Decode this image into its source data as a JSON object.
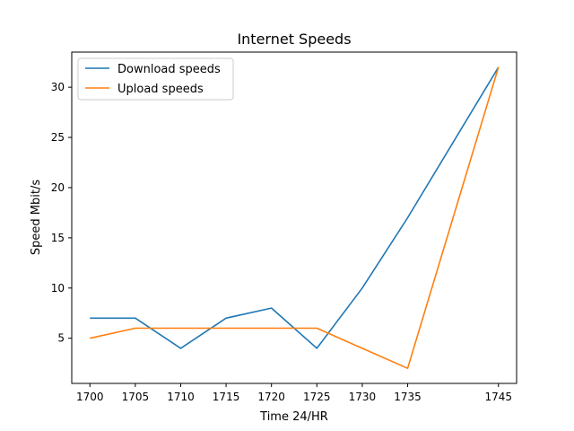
{
  "chart_data": {
    "type": "line",
    "title": "Internet Speeds",
    "xlabel": "Time 24/HR",
    "ylabel": "Speed Mbit/s",
    "x": [
      1700,
      1705,
      1710,
      1715,
      1720,
      1725,
      1730,
      1735,
      1745
    ],
    "xticks": [
      "1700",
      "1705",
      "1710",
      "1715",
      "1720",
      "1725",
      "1730",
      "1735",
      "1745"
    ],
    "yticks": [
      5,
      10,
      15,
      20,
      25,
      30
    ],
    "ylim": [
      0.5,
      33.5
    ],
    "grid": false,
    "legend_position": "top-left",
    "series": [
      {
        "name": "Download speeds",
        "color": "#1f77b4",
        "values": [
          7,
          7,
          4,
          7,
          8,
          4,
          10,
          17,
          32
        ]
      },
      {
        "name": "Upload speeds",
        "color": "#ff7f0e",
        "values": [
          5,
          6,
          6,
          6,
          6,
          6,
          4,
          2,
          32
        ]
      }
    ]
  }
}
